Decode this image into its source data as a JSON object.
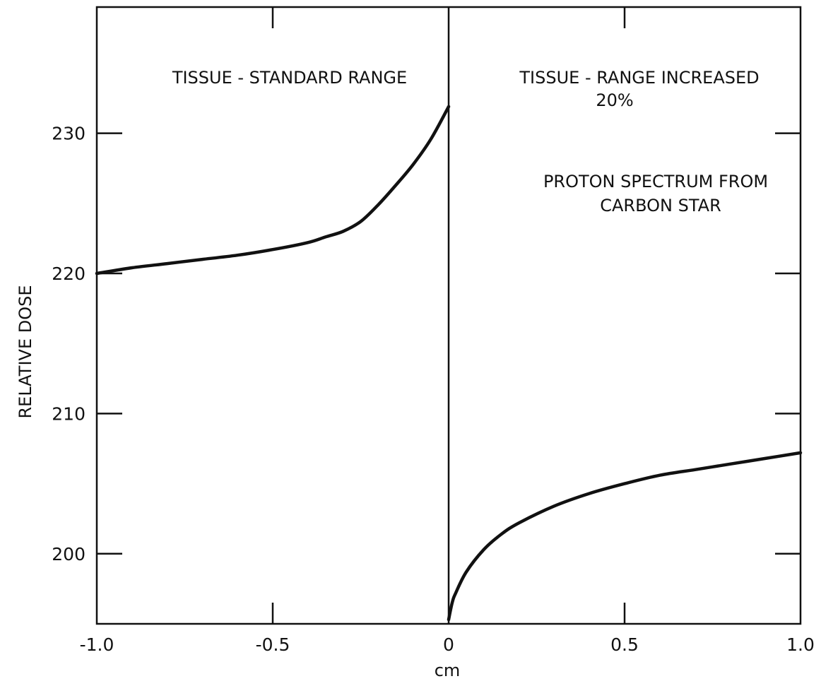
{
  "chart_data": {
    "type": "line",
    "title": "",
    "xlabel": "cm",
    "ylabel": "RELATIVE DOSE",
    "xlim": [
      -1.0,
      1.0
    ],
    "ylim": [
      195,
      239
    ],
    "x_ticks": [
      -1.0,
      -0.5,
      0,
      0.5,
      1.0
    ],
    "x_tick_labels": [
      "-1.0",
      "-0.5",
      "0",
      "0.5",
      "1.0"
    ],
    "y_ticks": [
      200,
      210,
      220,
      230
    ],
    "y_tick_labels": [
      "200",
      "210",
      "220",
      "230"
    ],
    "grid": false,
    "legend": "none",
    "series": [
      {
        "x": [
          -1.0,
          -0.9,
          -0.8,
          -0.7,
          -0.6,
          -0.5,
          -0.4,
          -0.35,
          -0.3,
          -0.25,
          -0.2,
          -0.15,
          -0.1,
          -0.05,
          0.0
        ],
        "y": [
          220.0,
          220.4,
          220.7,
          221.0,
          221.3,
          221.7,
          222.2,
          222.6,
          223.0,
          223.7,
          224.9,
          226.3,
          227.8,
          229.6,
          231.9
        ]
      },
      {
        "x": [
          0.0,
          0.01,
          0.02,
          0.05,
          0.1,
          0.15,
          0.2,
          0.3,
          0.4,
          0.5,
          0.6,
          0.7,
          0.8,
          0.9,
          1.0
        ],
        "y": [
          195.3,
          196.5,
          197.2,
          198.7,
          200.3,
          201.4,
          202.2,
          203.4,
          204.3,
          205.0,
          205.6,
          206.0,
          206.4,
          206.8,
          207.2
        ]
      }
    ],
    "annotations": {
      "left": "TISSUE - STANDARD RANGE",
      "right_line1": "TISSUE - RANGE INCREASED",
      "right_line2": "20%",
      "right_line3": "PROTON SPECTRUM FROM",
      "right_line4": "CARBON STAR"
    }
  }
}
